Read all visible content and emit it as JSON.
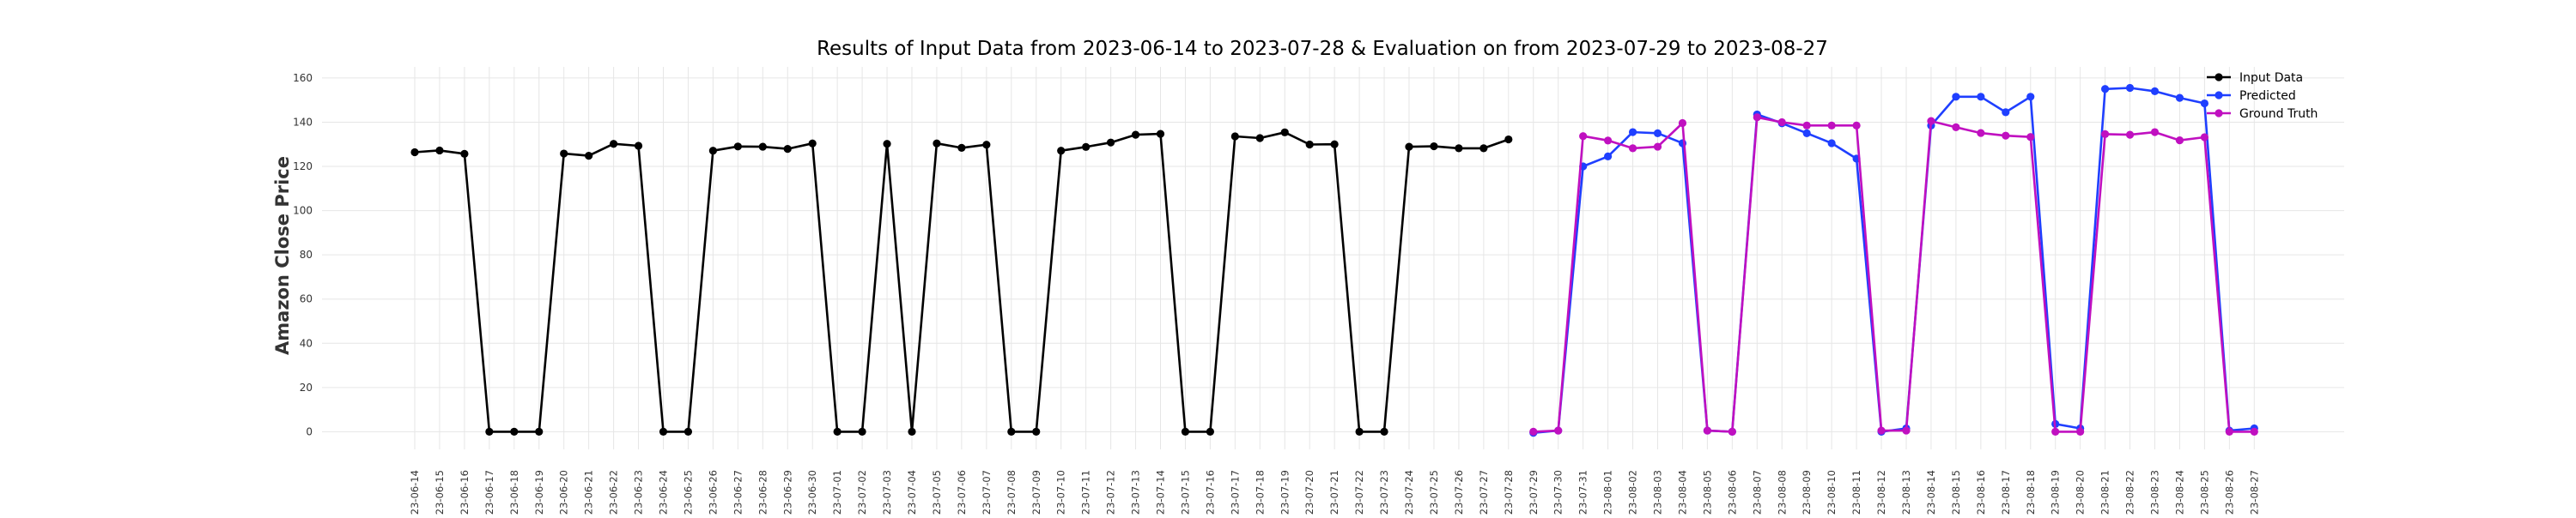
{
  "chart_data": {
    "type": "line",
    "title": "Results of Input Data from 2023-06-14 to 2023-07-28 & Evaluation on from 2023-07-29 to 2023-08-27",
    "xlabel": "",
    "ylabel": "Amazon Close Price",
    "ylim": [
      -8,
      165
    ],
    "yticks": [
      0,
      20,
      40,
      60,
      80,
      100,
      120,
      140,
      160
    ],
    "grid": true,
    "legend_position": "top-right",
    "x": [
      "2023-06-14",
      "2023-06-15",
      "2023-06-16",
      "2023-06-17",
      "2023-06-18",
      "2023-06-19",
      "2023-06-20",
      "2023-06-21",
      "2023-06-22",
      "2023-06-23",
      "2023-06-24",
      "2023-06-25",
      "2023-06-26",
      "2023-06-27",
      "2023-06-28",
      "2023-06-29",
      "2023-06-30",
      "2023-07-01",
      "2023-07-02",
      "2023-07-03",
      "2023-07-04",
      "2023-07-05",
      "2023-07-06",
      "2023-07-07",
      "2023-07-08",
      "2023-07-09",
      "2023-07-10",
      "2023-07-11",
      "2023-07-12",
      "2023-07-13",
      "2023-07-14",
      "2023-07-15",
      "2023-07-16",
      "2023-07-17",
      "2023-07-18",
      "2023-07-19",
      "2023-07-20",
      "2023-07-21",
      "2023-07-22",
      "2023-07-23",
      "2023-07-24",
      "2023-07-25",
      "2023-07-26",
      "2023-07-27",
      "2023-07-28",
      "2023-07-29",
      "2023-07-30",
      "2023-07-31",
      "2023-08-01",
      "2023-08-02",
      "2023-08-03",
      "2023-08-04",
      "2023-08-05",
      "2023-08-06",
      "2023-08-07",
      "2023-08-08",
      "2023-08-09",
      "2023-08-10",
      "2023-08-11",
      "2023-08-12",
      "2023-08-13",
      "2023-08-14",
      "2023-08-15",
      "2023-08-16",
      "2023-08-17",
      "2023-08-18",
      "2023-08-19",
      "2023-08-20",
      "2023-08-21",
      "2023-08-22",
      "2023-08-23",
      "2023-08-24",
      "2023-08-25",
      "2023-08-26",
      "2023-08-27"
    ],
    "tick_labels": [
      "-23-06-14",
      "-23-06-15",
      "-23-06-16",
      "-23-06-17",
      "-23-06-18",
      "-23-06-19",
      "-23-06-20",
      "-23-06-21",
      "-23-06-22",
      "-23-06-23",
      "-23-06-24",
      "-23-06-25",
      "-23-06-26",
      "-23-06-27",
      "-23-06-28",
      "-23-06-29",
      "-23-06-30",
      "-23-07-01",
      "-23-07-02",
      "-23-07-03",
      "-23-07-04",
      "-23-07-05",
      "-23-07-06",
      "-23-07-07",
      "-23-07-08",
      "-23-07-09",
      "-23-07-10",
      "-23-07-11",
      "-23-07-12",
      "-23-07-13",
      "-23-07-14",
      "-23-07-15",
      "-23-07-16",
      "-23-07-17",
      "-23-07-18",
      "-23-07-19",
      "-23-07-20",
      "-23-07-21",
      "-23-07-22",
      "-23-07-23",
      "-23-07-24",
      "-23-07-25",
      "-23-07-26",
      "-23-07-27",
      "-23-07-28",
      "-23-07-29",
      "-23-07-30",
      "-23-07-31",
      "-23-08-01",
      "-23-08-02",
      "-23-08-03",
      "-23-08-04",
      "-23-08-05",
      "-23-08-06",
      "-23-08-07",
      "-23-08-08",
      "-23-08-09",
      "-23-08-10",
      "-23-08-11",
      "-23-08-12",
      "-23-08-13",
      "-23-08-14",
      "-23-08-15",
      "-23-08-16",
      "-23-08-17",
      "-23-08-18",
      "-23-08-19",
      "-23-08-20",
      "-23-08-21",
      "-23-08-22",
      "-23-08-23",
      "-23-08-24",
      "-23-08-25",
      "-23-08-26",
      "-23-08-27"
    ],
    "series": [
      {
        "name": "Input Data",
        "color": "#000000",
        "x": [
          "2023-06-14",
          "2023-06-15",
          "2023-06-16",
          "2023-06-17",
          "2023-06-18",
          "2023-06-19",
          "2023-06-20",
          "2023-06-21",
          "2023-06-22",
          "2023-06-23",
          "2023-06-24",
          "2023-06-25",
          "2023-06-26",
          "2023-06-27",
          "2023-06-28",
          "2023-06-29",
          "2023-06-30",
          "2023-07-01",
          "2023-07-02",
          "2023-07-03",
          "2023-07-04",
          "2023-07-05",
          "2023-07-06",
          "2023-07-07",
          "2023-07-08",
          "2023-07-09",
          "2023-07-10",
          "2023-07-11",
          "2023-07-12",
          "2023-07-13",
          "2023-07-14",
          "2023-07-15",
          "2023-07-16",
          "2023-07-17",
          "2023-07-18",
          "2023-07-19",
          "2023-07-20",
          "2023-07-21",
          "2023-07-22",
          "2023-07-23",
          "2023-07-24",
          "2023-07-25",
          "2023-07-26",
          "2023-07-27",
          "2023-07-28"
        ],
        "values": [
          126.4,
          127.2,
          125.7,
          0,
          0,
          0,
          125.8,
          124.8,
          130.2,
          129.3,
          0,
          0,
          127.1,
          129.0,
          128.9,
          127.9,
          130.4,
          0,
          0,
          130.2,
          0,
          130.4,
          128.4,
          129.8,
          0,
          0,
          127.1,
          128.8,
          130.8,
          134.3,
          134.7,
          0,
          0,
          133.6,
          132.8,
          135.4,
          129.9,
          130.0,
          0,
          0,
          128.9,
          129.1,
          128.2,
          128.2,
          132.2
        ]
      },
      {
        "name": "Predicted",
        "color": "#1f3fff",
        "x": [
          "2023-07-29",
          "2023-07-30",
          "2023-07-31",
          "2023-08-01",
          "2023-08-02",
          "2023-08-03",
          "2023-08-04",
          "2023-08-05",
          "2023-08-06",
          "2023-08-07",
          "2023-08-08",
          "2023-08-09",
          "2023-08-10",
          "2023-08-11",
          "2023-08-12",
          "2023-08-13",
          "2023-08-14",
          "2023-08-15",
          "2023-08-16",
          "2023-08-17",
          "2023-08-18",
          "2023-08-19",
          "2023-08-20",
          "2023-08-21",
          "2023-08-22",
          "2023-08-23",
          "2023-08-24",
          "2023-08-25",
          "2023-08-26",
          "2023-08-27"
        ],
        "values": [
          -0.5,
          0.5,
          120.0,
          124.5,
          135.5,
          135.0,
          130.5,
          0.5,
          0,
          143.5,
          139.5,
          135.0,
          130.5,
          123.5,
          0,
          1.5,
          138.5,
          151.5,
          151.5,
          144.5,
          151.5,
          3.5,
          1.5,
          155.0,
          155.5,
          154.0,
          151.0,
          148.5,
          0.5,
          1.5
        ]
      },
      {
        "name": "Ground Truth",
        "color": "#c010c0",
        "x": [
          "2023-07-29",
          "2023-07-30",
          "2023-07-31",
          "2023-08-01",
          "2023-08-02",
          "2023-08-03",
          "2023-08-04",
          "2023-08-05",
          "2023-08-06",
          "2023-08-07",
          "2023-08-08",
          "2023-08-09",
          "2023-08-10",
          "2023-08-11",
          "2023-08-12",
          "2023-08-13",
          "2023-08-14",
          "2023-08-15",
          "2023-08-16",
          "2023-08-17",
          "2023-08-18",
          "2023-08-19",
          "2023-08-20",
          "2023-08-21",
          "2023-08-22",
          "2023-08-23",
          "2023-08-24",
          "2023-08-25",
          "2023-08-26",
          "2023-08-27"
        ],
        "values": [
          0,
          0.5,
          133.7,
          131.7,
          128.2,
          128.9,
          139.6,
          0.5,
          0,
          142.2,
          140.0,
          138.5,
          138.5,
          138.5,
          0.5,
          0.5,
          140.5,
          137.7,
          135.1,
          133.9,
          133.3,
          0,
          0,
          134.6,
          134.3,
          135.5,
          131.8,
          133.2,
          0,
          0
        ]
      }
    ]
  }
}
